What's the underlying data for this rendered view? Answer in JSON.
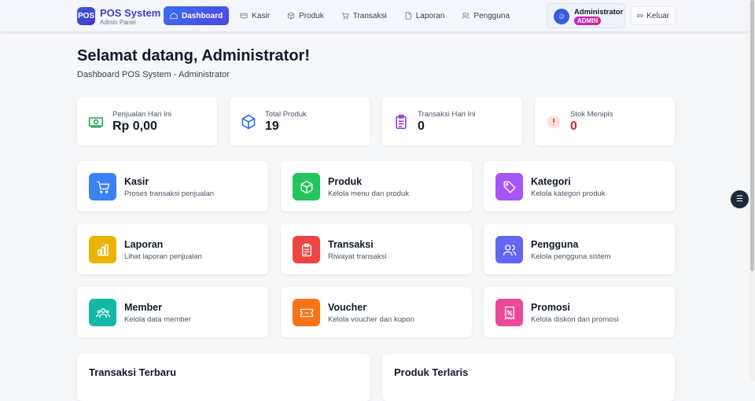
{
  "header": {
    "logo": "POS",
    "title": "POS System",
    "subtitle": "Admin Panel",
    "nav": [
      {
        "label": "Dashboard",
        "icon": "home-icon",
        "active": true
      },
      {
        "label": "Kasir",
        "icon": "card-icon"
      },
      {
        "label": "Produk",
        "icon": "box-icon"
      },
      {
        "label": "Transaksi",
        "icon": "cart-icon"
      },
      {
        "label": "Laporan",
        "icon": "document-icon"
      },
      {
        "label": "Pengguna",
        "icon": "users-icon"
      }
    ],
    "user": {
      "name": "Administrator",
      "role": "ADMIN"
    },
    "logout": "Keluar"
  },
  "welcome": {
    "title": "Selamat datang, Administrator!",
    "subtitle": "Dashboard POS System - Administrator"
  },
  "stats": [
    {
      "label": "Penjualan Hari Ini",
      "value": "Rp 0,00",
      "icon": "money-icon",
      "color": "#16a34a"
    },
    {
      "label": "Total Produk",
      "value": "19",
      "icon": "cube-icon",
      "color": "#2563eb"
    },
    {
      "label": "Transaksi Hari Ini",
      "value": "0",
      "icon": "clipboard-icon",
      "color": "#9333ea"
    },
    {
      "label": "Stok Menipis",
      "value": "0",
      "icon": "alert-icon",
      "color": "#dc2626"
    }
  ],
  "menu": [
    {
      "title": "Kasir",
      "desc": "Proses transaksi penjualan",
      "color": "#3b82f6",
      "icon": "cart-icon"
    },
    {
      "title": "Produk",
      "desc": "Kelola menu dan produk",
      "color": "#22c55e",
      "icon": "cube-icon"
    },
    {
      "title": "Kategori",
      "desc": "Kelola kategori produk",
      "color": "#a855f7",
      "icon": "tag-icon"
    },
    {
      "title": "Laporan",
      "desc": "Lihat laporan penjualan",
      "color": "#eab308",
      "icon": "bar-chart-icon"
    },
    {
      "title": "Transaksi",
      "desc": "Riwayat transaksi",
      "color": "#ef4444",
      "icon": "clipboard-icon"
    },
    {
      "title": "Pengguna",
      "desc": "Kelola pengguna sistem",
      "color": "#6366f1",
      "icon": "users-icon"
    },
    {
      "title": "Member",
      "desc": "Kelola data member",
      "color": "#14b8a6",
      "icon": "group-icon"
    },
    {
      "title": "Voucher",
      "desc": "Kelola voucher dan kupon",
      "color": "#f97316",
      "icon": "ticket-icon"
    },
    {
      "title": "Promosi",
      "desc": "Kelola diskon dan promosi",
      "color": "#ec4899",
      "icon": "receipt-percent-icon"
    }
  ],
  "sections": [
    "Transaksi Terbaru",
    "Produk Terlaris"
  ]
}
